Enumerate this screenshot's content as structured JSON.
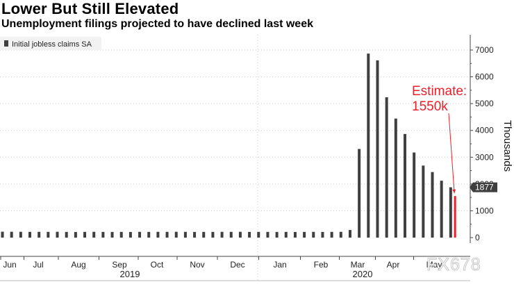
{
  "title": "Lower But Still Elevated",
  "subtitle": "Unemployment filings projected to have declined last week",
  "watermark": "FX678",
  "colors": {
    "bar": "#3f3f3f",
    "estimate": "#e8202a",
    "last_label_bg": "#3f3f3f"
  },
  "chart_data": {
    "type": "bar",
    "legend": [
      "Initial jobless claims SA"
    ],
    "legend_position": "top-left",
    "ylabel": "Thousands",
    "ylim": [
      0,
      7400
    ],
    "yticks": [
      0,
      1000,
      2000,
      3000,
      4000,
      5000,
      6000,
      7000
    ],
    "ytick_labels": [
      "0",
      "1000",
      "2000",
      "3000",
      "4000",
      "5000",
      "6000",
      "7000"
    ],
    "month_labels": [
      "Jun",
      "Jul",
      "Aug",
      "Sep",
      "Oct",
      "Nov",
      "Dec",
      "Jan",
      "Feb",
      "Mar",
      "Apr",
      "May"
    ],
    "year_labels": [
      "2019",
      "2020"
    ],
    "grid": true,
    "series": [
      {
        "name": "Initial jobless claims SA",
        "values": [
          220,
          218,
          216,
          213,
          215,
          214,
          216,
          212,
          210,
          213,
          215,
          212,
          211,
          213,
          210,
          214,
          212,
          215,
          213,
          216,
          214,
          211,
          213,
          212,
          215,
          214,
          216,
          212,
          214,
          213,
          211,
          212,
          210,
          212,
          214,
          211,
          213,
          215,
          282,
          3307,
          6867,
          6615,
          5237,
          4442,
          3867,
          3176,
          2687,
          2446,
          2123,
          1877
        ]
      }
    ],
    "estimate": {
      "value": 1550,
      "label_line1": "Estimate:",
      "label_line2": "1550k"
    },
    "last_value_label": "1877"
  }
}
